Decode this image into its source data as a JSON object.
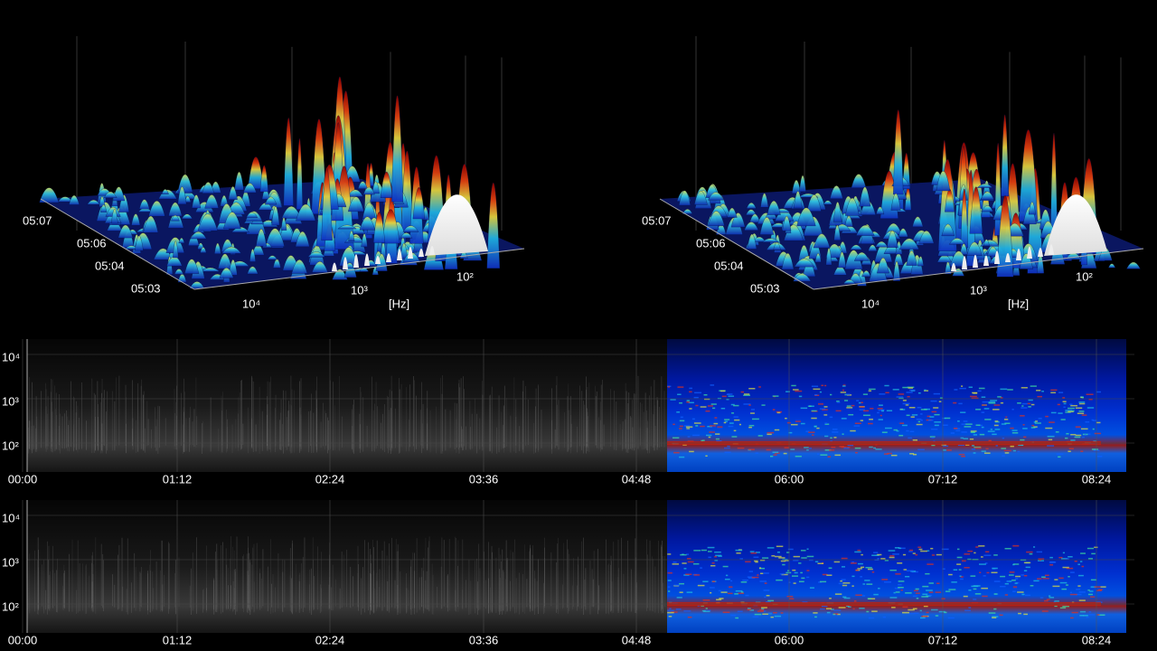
{
  "panels_3d": [
    {
      "time_labels": [
        "05:07",
        "05:06",
        "05:04",
        "05:03"
      ],
      "freq_labels": [
        "10⁴",
        "10³",
        "10²"
      ],
      "unit": "[Hz]"
    },
    {
      "time_labels": [
        "05:07",
        "05:06",
        "05:04",
        "05:03"
      ],
      "freq_labels": [
        "10⁴",
        "10³",
        "10²"
      ],
      "unit": "[Hz]"
    }
  ],
  "spectrograms": [
    {
      "y_labels": [
        "10⁴",
        "10³",
        "10²"
      ],
      "x_labels": [
        "00:00",
        "01:12",
        "02:24",
        "03:36",
        "04:48",
        "06:00",
        "07:12",
        "08:24"
      ]
    },
    {
      "y_labels": [
        "10⁴",
        "10³",
        "10²"
      ],
      "x_labels": [
        "00:00",
        "01:12",
        "02:24",
        "03:36",
        "04:48",
        "06:00",
        "07:12",
        "08:24"
      ]
    }
  ]
}
